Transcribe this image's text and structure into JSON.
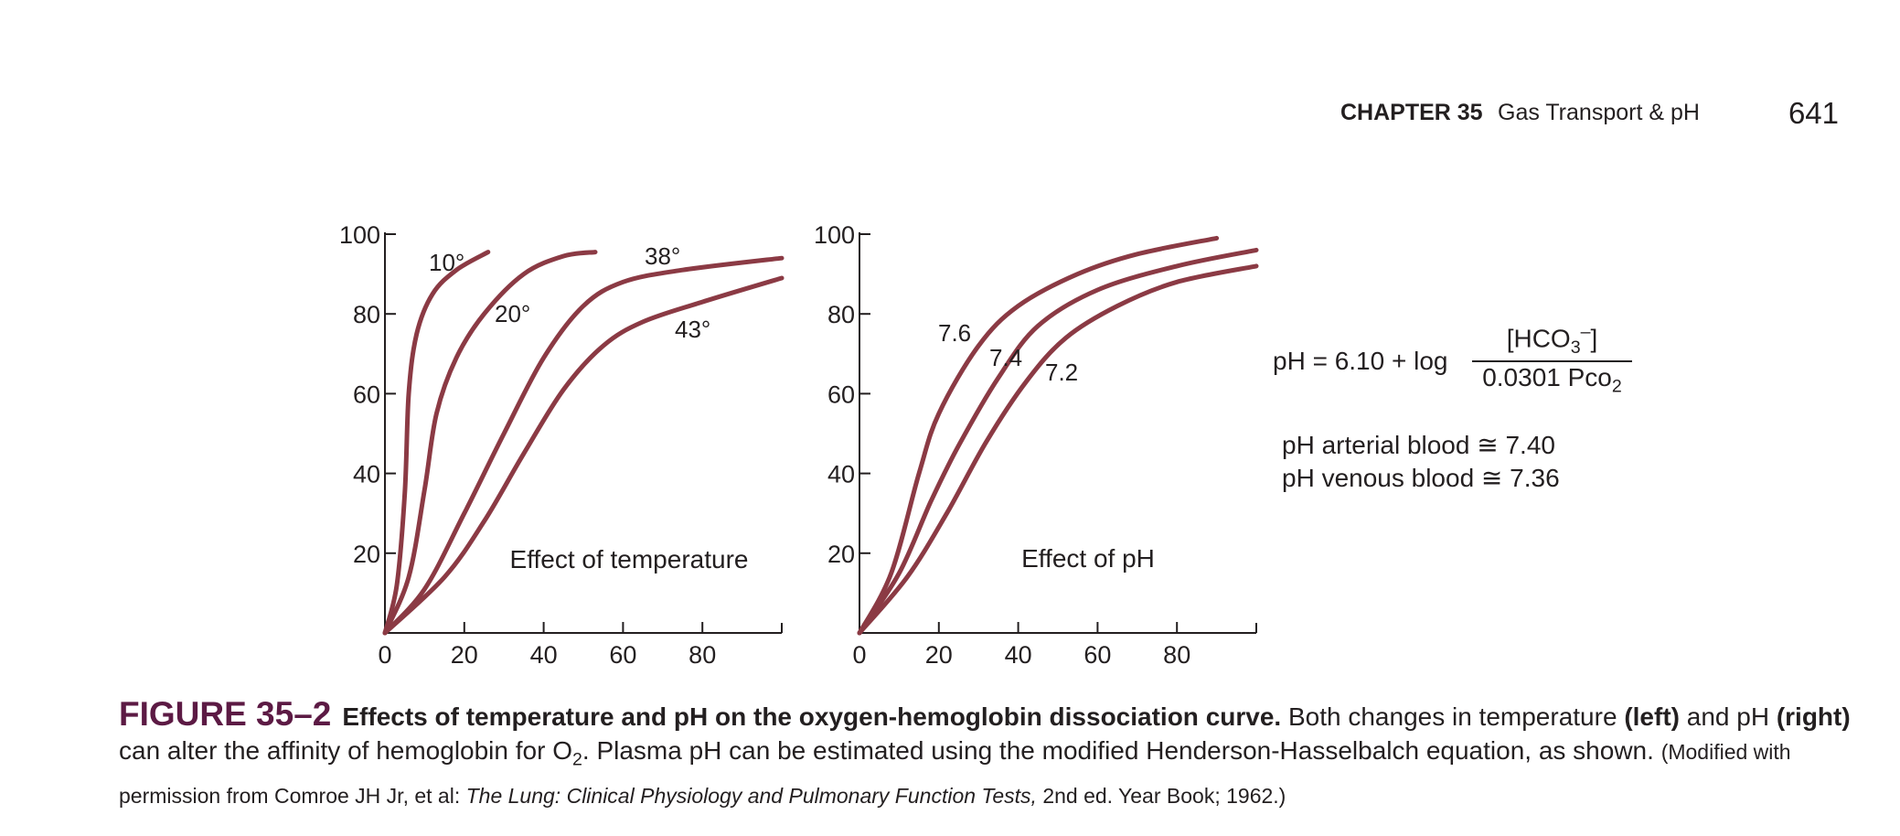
{
  "running_head": {
    "chapter": "CHAPTER 35",
    "title": "Gas Transport & pH",
    "page_number": "641"
  },
  "chart_data": [
    {
      "type": "line",
      "annotation": "Effect of temperature",
      "xlim": [
        0,
        100
      ],
      "ylim": [
        0,
        100
      ],
      "xticks": [
        "0",
        "20",
        "40",
        "60",
        "80"
      ],
      "yticks": [
        "20",
        "40",
        "60",
        "80",
        "100"
      ],
      "line_color": "#8b3a44",
      "series": [
        {
          "label": "10°",
          "points": [
            [
              0,
              0
            ],
            [
              3,
              12
            ],
            [
              5,
              35
            ],
            [
              6,
              60
            ],
            [
              8,
              75
            ],
            [
              12,
              85
            ],
            [
              18,
              91
            ],
            [
              26,
              95.5
            ]
          ]
        },
        {
          "label": "20°",
          "points": [
            [
              0,
              0
            ],
            [
              6,
              14
            ],
            [
              10,
              36
            ],
            [
              13,
              55
            ],
            [
              18,
              69
            ],
            [
              25,
              80
            ],
            [
              35,
              90
            ],
            [
              45,
              94.5
            ],
            [
              53,
              95.5
            ]
          ]
        },
        {
          "label": "38°",
          "points": [
            [
              0,
              0
            ],
            [
              10,
              11
            ],
            [
              20,
              30
            ],
            [
              30,
              50
            ],
            [
              40,
              69
            ],
            [
              50,
              82
            ],
            [
              60,
              88
            ],
            [
              75,
              91
            ],
            [
              100,
              94
            ]
          ]
        },
        {
          "label": "43°",
          "points": [
            [
              0,
              0
            ],
            [
              15,
              14
            ],
            [
              25,
              28
            ],
            [
              35,
              45
            ],
            [
              45,
              61
            ],
            [
              55,
              72
            ],
            [
              65,
              78
            ],
            [
              80,
              83
            ],
            [
              100,
              89
            ]
          ]
        }
      ]
    },
    {
      "type": "line",
      "annotation": "Effect of pH",
      "xlim": [
        0,
        100
      ],
      "ylim": [
        0,
        100
      ],
      "xticks": [
        "0",
        "20",
        "40",
        "60",
        "80"
      ],
      "yticks": [
        "20",
        "40",
        "60",
        "80",
        "100"
      ],
      "line_color": "#8b3a44",
      "series": [
        {
          "label": "7.6",
          "points": [
            [
              0,
              0
            ],
            [
              8,
              15
            ],
            [
              15,
              40
            ],
            [
              20,
              55
            ],
            [
              30,
              72
            ],
            [
              40,
              82
            ],
            [
              55,
              90
            ],
            [
              70,
              95
            ],
            [
              90,
              99
            ]
          ]
        },
        {
          "label": "7.4",
          "points": [
            [
              0,
              0
            ],
            [
              10,
              15
            ],
            [
              18,
              33
            ],
            [
              25,
              47
            ],
            [
              35,
              64
            ],
            [
              45,
              77
            ],
            [
              60,
              86
            ],
            [
              80,
              92
            ],
            [
              100,
              96
            ]
          ]
        },
        {
          "label": "7.2",
          "points": [
            [
              0,
              0
            ],
            [
              12,
              14
            ],
            [
              22,
              30
            ],
            [
              32,
              48
            ],
            [
              42,
              63
            ],
            [
              52,
              74
            ],
            [
              65,
              82
            ],
            [
              80,
              88
            ],
            [
              100,
              92
            ]
          ]
        }
      ]
    }
  ],
  "equation": {
    "lhs": "pH = 6.10 + log",
    "numerator": {
      "base": "[HCO",
      "sub": "3",
      "sup": "–",
      "close": "]"
    },
    "denominator": {
      "base": "0.0301 Pco",
      "sub": "2"
    }
  },
  "ph_values": {
    "arterial": "pH arterial blood ≅ 7.40",
    "venous": "pH venous blood ≅ 7.36"
  },
  "caption": {
    "label": "FIGURE 35–2",
    "bold_title": "Effects of temperature and pH on the oxygen-hemoglobin dissociation curve.",
    "t1": " Both changes in temperature ",
    "left": "(left)",
    "t2": " and pH ",
    "right": "(right)",
    "t3": " can alter the affinity of hemoglobin for O",
    "o2_sub": "2",
    "t4": ". Plasma pH can be estimated using the modified Henderson-Hasselbalch equation, as shown.",
    "credit_pre": "(Modified with permission from Comroe JH Jr, et al: ",
    "credit_title": "The Lung: Clinical Physiology and Pulmonary Function Tests,",
    "credit_post": " 2nd ed. Year Book; 1962.)"
  }
}
